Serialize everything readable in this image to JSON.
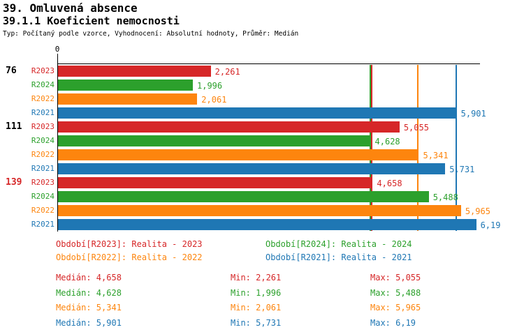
{
  "title": "39. Omluvená absence",
  "subtitle": "39.1.1 Koeficient nemocnosti",
  "meta": "Typ: Počítaný podle vzorce, Vyhodnocení: Absolutní hodnoty, Průměr: Medián",
  "chart_data": {
    "type": "bar",
    "orientation": "horizontal",
    "axis_zero_label": "0",
    "xlim": [
      0,
      6.25
    ],
    "colors": {
      "R2023": "#d62728",
      "R2024": "#2ca02c",
      "R2022": "#fd850e",
      "R2021": "#1f77b4"
    },
    "groups": [
      {
        "label": "76",
        "label_color": "#000000",
        "bars": [
          {
            "series": "R2023",
            "value": 2.261,
            "display": "2,261"
          },
          {
            "series": "R2024",
            "value": 1.996,
            "display": "1,996"
          },
          {
            "series": "R2022",
            "value": 2.061,
            "display": "2,061"
          },
          {
            "series": "R2021",
            "value": 5.901,
            "display": "5,901"
          }
        ]
      },
      {
        "label": "111",
        "label_color": "#000000",
        "bars": [
          {
            "series": "R2023",
            "value": 5.055,
            "display": "5,055"
          },
          {
            "series": "R2024",
            "value": 4.628,
            "display": "4,628"
          },
          {
            "series": "R2022",
            "value": 5.341,
            "display": "5,341"
          },
          {
            "series": "R2021",
            "value": 5.731,
            "display": "5,731"
          }
        ]
      },
      {
        "label": "139",
        "label_color": "#d62728",
        "bars": [
          {
            "series": "R2023",
            "value": 4.658,
            "display": "4,658"
          },
          {
            "series": "R2024",
            "value": 5.488,
            "display": "5,488"
          },
          {
            "series": "R2022",
            "value": 5.965,
            "display": "5,965"
          },
          {
            "series": "R2021",
            "value": 6.19,
            "display": "6,19"
          }
        ]
      }
    ],
    "median_lines": [
      {
        "series": "R2024",
        "value": 4.628
      },
      {
        "series": "R2023",
        "value": 4.658
      },
      {
        "series": "R2022",
        "value": 5.341
      },
      {
        "series": "R2021",
        "value": 5.901
      }
    ]
  },
  "legend": {
    "items": [
      {
        "series": "R2023",
        "label": "Období[R2023]: Realita - 2023"
      },
      {
        "series": "R2024",
        "label": "Období[R2024]: Realita - 2024"
      },
      {
        "series": "R2022",
        "label": "Období[R2022]: Realita - 2022"
      },
      {
        "series": "R2021",
        "label": "Období[R2021]: Realita - 2021"
      }
    ]
  },
  "stats": {
    "labels": {
      "median": "Medián",
      "min": "Min",
      "max": "Max"
    },
    "rows": [
      {
        "series": "R2023",
        "median": "4,658",
        "min": "2,261",
        "max": "5,055"
      },
      {
        "series": "R2024",
        "median": "4,628",
        "min": "1,996",
        "max": "5,488"
      },
      {
        "series": "R2022",
        "median": "5,341",
        "min": "2,061",
        "max": "5,965"
      },
      {
        "series": "R2021",
        "median": "5,901",
        "min": "5,731",
        "max": "6,19"
      }
    ]
  }
}
